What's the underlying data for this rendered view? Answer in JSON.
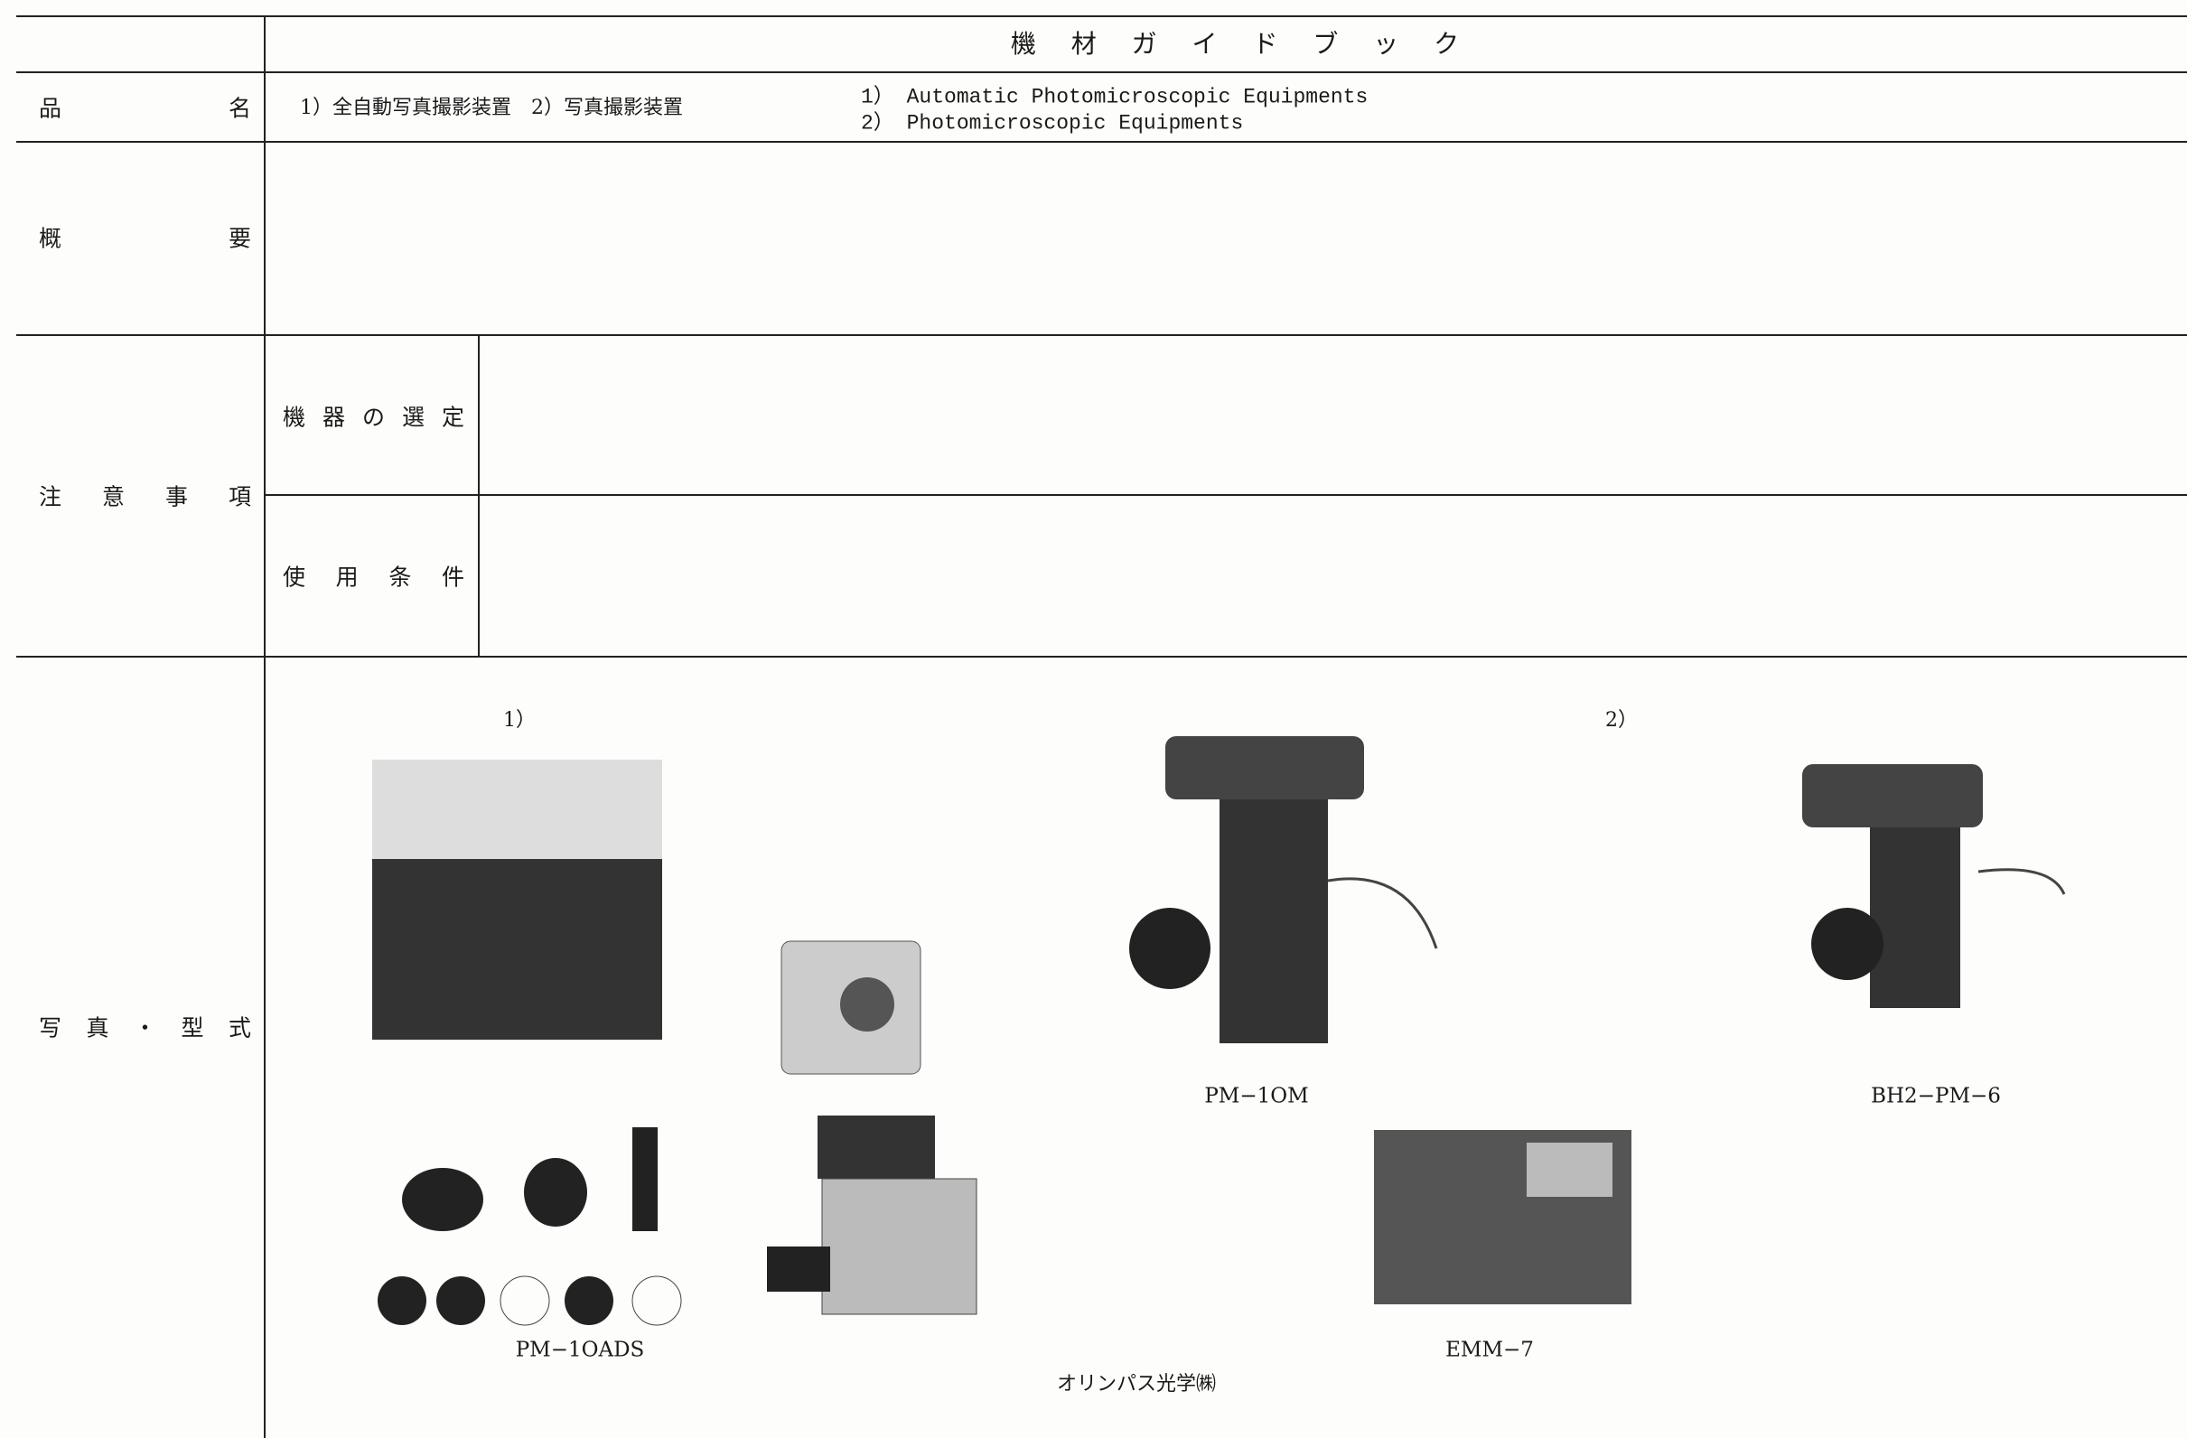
{
  "title": "機 材 ガ イ ド ブ ッ ク",
  "product_name": {
    "label": "品 名",
    "japanese": "1）全自動写真撮影装置　2）写真撮影装置",
    "english": [
      "1） Automatic Photomicroscopic Equipments",
      "2） Photomicroscopic Equipments"
    ]
  },
  "overview": {
    "label": "概 要"
  },
  "notes": {
    "label": "注 意 事 項",
    "selection": "機 器 の 選 定",
    "conditions": "使 用 条 件"
  },
  "photos": {
    "label": "写 真 ・ 型 式",
    "groups": [
      "1）",
      "2）"
    ],
    "models": [
      "PM−1OADS",
      "PM−1OM",
      "BH2−PM−6",
      "EMM−7"
    ],
    "maker": "オリンパス光学㈱"
  }
}
